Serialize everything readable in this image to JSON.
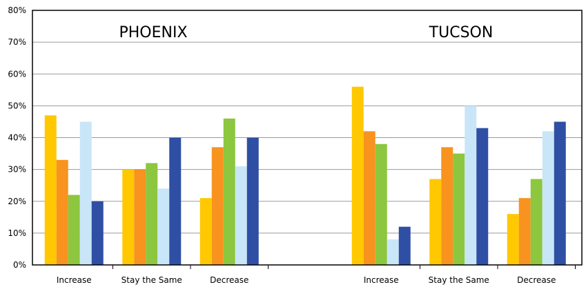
{
  "chart_data": {
    "type": "bar",
    "yaxis": {
      "min": 0,
      "max": 80,
      "step": 10,
      "tick_labels": [
        "0%",
        "10%",
        "20%",
        "30%",
        "40%",
        "50%",
        "60%",
        "70%",
        "80%"
      ]
    },
    "grid": true,
    "colors": [
      "#FFC800",
      "#F7931E",
      "#8DC63F",
      "#C9E6F8",
      "#2E4FA3"
    ],
    "panels": [
      {
        "title": "PHOENIX",
        "categories": [
          "Increase",
          "Stay the Same",
          "Decrease"
        ],
        "groups": [
          [
            47,
            33,
            22,
            45,
            20
          ],
          [
            30,
            30,
            32,
            24,
            40
          ],
          [
            21,
            37,
            46,
            31,
            40
          ]
        ]
      },
      {
        "title": "TUCSON",
        "categories": [
          "Increase",
          "Stay the Same",
          "Decrease"
        ],
        "groups": [
          [
            56,
            42,
            38,
            8,
            12
          ],
          [
            27,
            37,
            35,
            50,
            43
          ],
          [
            16,
            21,
            27,
            42,
            45
          ]
        ]
      }
    ]
  }
}
